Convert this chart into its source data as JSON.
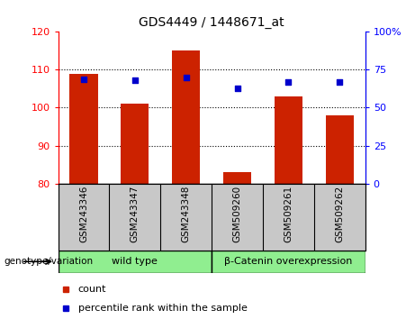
{
  "title": "GDS4449 / 1448671_at",
  "samples": [
    "GSM243346",
    "GSM243347",
    "GSM243348",
    "GSM509260",
    "GSM509261",
    "GSM509262"
  ],
  "counts": [
    109,
    101,
    115,
    83,
    103,
    98
  ],
  "percentiles": [
    69,
    68,
    70,
    63,
    67,
    67
  ],
  "left_ylim": [
    80,
    120
  ],
  "right_ylim": [
    0,
    100
  ],
  "left_yticks": [
    80,
    90,
    100,
    110,
    120
  ],
  "right_yticks": [
    0,
    25,
    50,
    75,
    100
  ],
  "right_yticklabels": [
    "0",
    "25",
    "50",
    "75",
    "100%"
  ],
  "bar_color": "#cc2200",
  "dot_color": "#0000cc",
  "group1_label": "wild type",
  "group2_label": "β-Catenin overexpression",
  "genotype_label": "genotype/variation",
  "legend_count": "count",
  "legend_percentile": "percentile rank within the sample",
  "bg_plot": "#ffffff",
  "bg_tick_area": "#c8c8c8",
  "bg_group": "#90ee90",
  "fig_bg": "#ffffff",
  "dotted_yticks": [
    90,
    100,
    110
  ]
}
